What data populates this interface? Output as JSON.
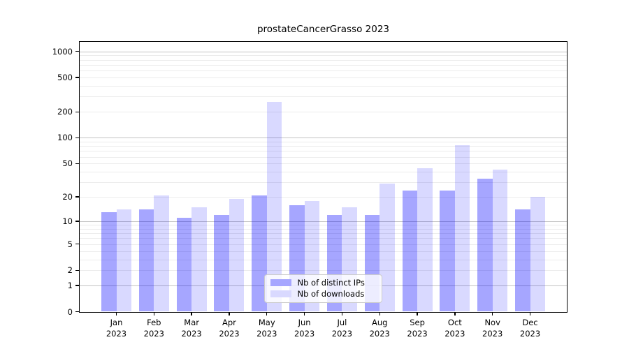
{
  "title": "prostateCancerGrasso 2023",
  "chart_data": {
    "type": "bar",
    "title": "prostateCancerGrasso 2023",
    "categories": [
      "Jan",
      "Feb",
      "Mar",
      "Apr",
      "May",
      "Jun",
      "Jul",
      "Aug",
      "Sep",
      "Oct",
      "Nov",
      "Dec"
    ],
    "x_year": "2023",
    "series": [
      {
        "name": "Nb of distinct IPs",
        "color": "rgba(0,0,255,0.35)",
        "solid_color": "#a6a6ff",
        "values": [
          13,
          14,
          11,
          12,
          21,
          16,
          12,
          12,
          24,
          24,
          33,
          14
        ]
      },
      {
        "name": "Nb of downloads",
        "color": "rgba(0,0,255,0.15)",
        "solid_color": "#d9d9ff",
        "values": [
          14,
          21,
          15,
          19,
          260,
          18,
          15,
          29,
          44,
          82,
          42,
          20
        ]
      }
    ],
    "yscale": "log1p",
    "ylim": [
      0,
      1270
    ],
    "yticks": [
      0,
      1,
      2,
      5,
      10,
      20,
      50,
      100,
      200,
      500,
      1000
    ],
    "minor_gridlines": [
      2,
      3,
      4,
      5,
      6,
      7,
      8,
      9,
      20,
      30,
      40,
      50,
      60,
      70,
      80,
      90,
      200,
      300,
      400,
      500,
      600,
      700,
      800,
      900
    ],
    "major_gridlines": [
      1,
      10,
      100,
      1000
    ],
    "grid": "horizontal major+minor",
    "legend_position": "inside lower-center",
    "colors": {
      "major_grid": "#c3c3c3",
      "minor_grid": "#ececec",
      "spine": "#000000",
      "background": "#ffffff"
    }
  }
}
